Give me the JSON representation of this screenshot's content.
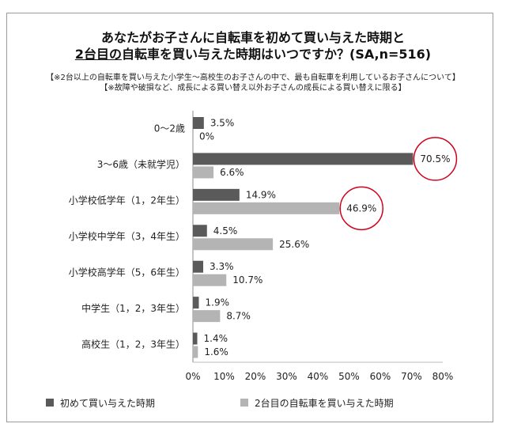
{
  "title": {
    "line1": "あなたがお子さんに自転車を初めて買い与えた時期と",
    "line2_underlined": "2台目の",
    "line2_rest": "自転車を買い与えた時期はいつですか？(SA,n=516)"
  },
  "notes": [
    "【※2台以上の自転車を買い与えた小学生～高校生のお子さんの中で、最も自転車を利用しているお子さんについて】",
    "【※故障や破損など、成長による買い替え以外お子さんの成長による買い替えに限る】"
  ],
  "colors": {
    "first": "#5a5a5a",
    "second": "#b4b4b4",
    "highlight_circle": "#d0021b"
  },
  "chart_data": {
    "type": "bar",
    "orientation": "horizontal",
    "categories": [
      "0～2歳",
      "3～6歳（未就学児）",
      "小学校低学年（1，2年生）",
      "小学校中学年（3，4年生）",
      "小学校高学年（5，6年生）",
      "中学生（1，2，3年生）",
      "高校生（1，2，3年生）"
    ],
    "series": [
      {
        "name": "初めて買い与えた時期",
        "values": [
          3.5,
          70.5,
          14.9,
          4.5,
          3.3,
          1.9,
          1.4
        ]
      },
      {
        "name": "2台目の自転車を買い与えた時期",
        "values": [
          0,
          6.6,
          46.9,
          25.6,
          10.7,
          8.7,
          1.6
        ]
      }
    ],
    "xlim": [
      0,
      80
    ],
    "x_ticks": [
      "0%",
      "10%",
      "20%",
      "30%",
      "40%",
      "50%",
      "60%",
      "70%",
      "80%"
    ],
    "value_suffix": "%",
    "highlighted": [
      {
        "category": "3～6歳（未就学児）",
        "series": "初めて買い与えた時期"
      },
      {
        "category": "小学校低学年（1，2年生）",
        "series": "2台目の自転車を買い与えた時期"
      }
    ],
    "legend_position": "bottom",
    "grid": false
  }
}
